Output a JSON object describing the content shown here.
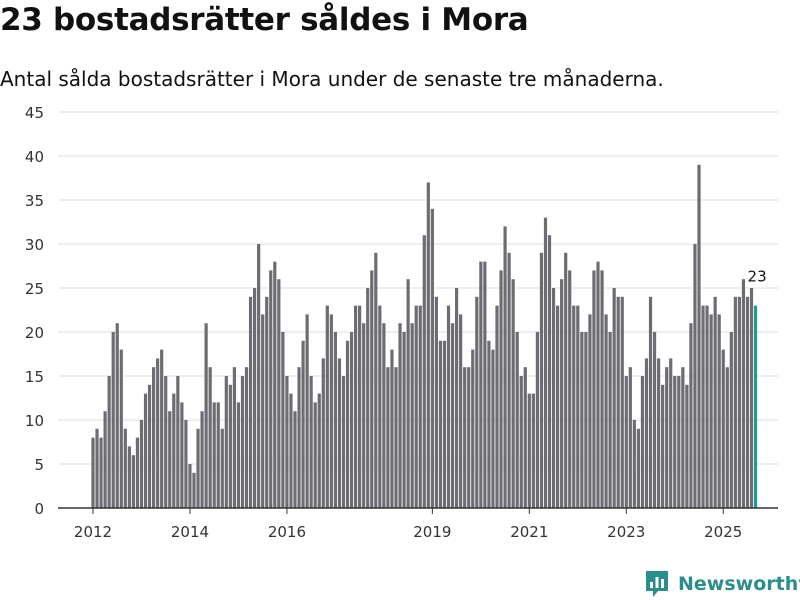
{
  "title": "23 bostadsrätter såldes i Mora",
  "subtitle": "Antal sålda bostadsrätter i Mora under de senaste tre månaderna.",
  "brand": "Newsworthy",
  "colors": {
    "bar": "#6d6c72",
    "highlight": "#1f9a94",
    "grid": "#dddddd",
    "axis": "#333333",
    "brand": "#2a8f8a"
  },
  "icons": {
    "brand": "bar-chart-logo-icon"
  },
  "chart_data": {
    "type": "bar",
    "title": "23 bostadsrätter såldes i Mora",
    "xlabel": "",
    "ylabel": "",
    "ylim": [
      0,
      45
    ],
    "yticks": [
      0,
      5,
      10,
      15,
      20,
      25,
      30,
      35,
      40,
      45
    ],
    "grid": true,
    "x_start": "2012-01",
    "x_end": "2025-09",
    "xticks": [
      {
        "label": "2012",
        "index": 0
      },
      {
        "label": "2014",
        "index": 24
      },
      {
        "label": "2016",
        "index": 48
      },
      {
        "label": "2019",
        "index": 84
      },
      {
        "label": "2021",
        "index": 108
      },
      {
        "label": "2023",
        "index": 132
      },
      {
        "label": "2025",
        "index": 156
      }
    ],
    "values": [
      8,
      9,
      8,
      11,
      15,
      20,
      21,
      18,
      9,
      7,
      6,
      8,
      10,
      13,
      14,
      16,
      17,
      18,
      15,
      11,
      13,
      15,
      12,
      10,
      5,
      4,
      9,
      11,
      21,
      16,
      12,
      12,
      9,
      15,
      14,
      16,
      12,
      15,
      16,
      24,
      25,
      30,
      22,
      24,
      27,
      28,
      26,
      20,
      15,
      13,
      11,
      16,
      19,
      22,
      15,
      12,
      13,
      17,
      23,
      22,
      20,
      17,
      15,
      19,
      20,
      23,
      23,
      21,
      25,
      27,
      29,
      23,
      21,
      16,
      18,
      16,
      21,
      20,
      26,
      21,
      23,
      23,
      31,
      37,
      34,
      24,
      19,
      19,
      23,
      21,
      25,
      22,
      16,
      16,
      18,
      24,
      28,
      28,
      19,
      18,
      23,
      27,
      32,
      29,
      26,
      20,
      15,
      16,
      13,
      13,
      20,
      29,
      33,
      31,
      25,
      23,
      26,
      29,
      27,
      23,
      23,
      20,
      20,
      22,
      27,
      28,
      27,
      22,
      20,
      25,
      24,
      24,
      15,
      16,
      10,
      9,
      15,
      17,
      24,
      20,
      17,
      14,
      16,
      17,
      15,
      15,
      16,
      14,
      21,
      30,
      39,
      23,
      23,
      22,
      24,
      22,
      18,
      16,
      20,
      24,
      24,
      26,
      24,
      25,
      23
    ],
    "highlight_index": 164,
    "data_label": "23"
  }
}
